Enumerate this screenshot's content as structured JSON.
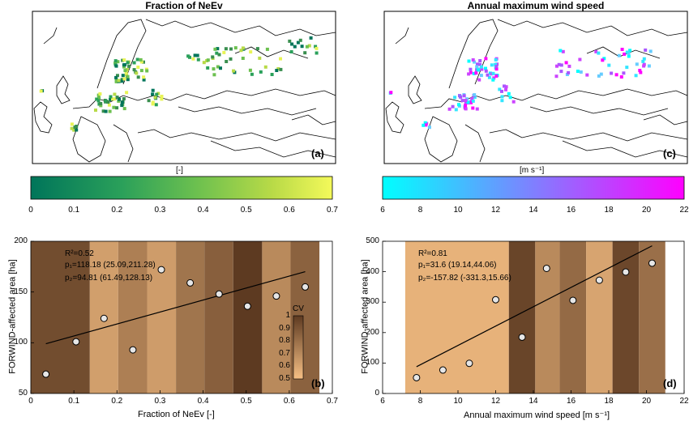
{
  "panels": {
    "a": {
      "title": "Fraction of NeEv",
      "letter": "(a)",
      "unit": "[-]",
      "colorbar": {
        "ticks": [
          "0",
          "0.1",
          "0.2",
          "0.3",
          "0.4",
          "0.5",
          "0.6",
          "0.7"
        ],
        "colors": [
          "#00755a",
          "#2aa05a",
          "#6cc04f",
          "#b8da47",
          "#f4f95a"
        ]
      }
    },
    "c": {
      "title": "Annual maximum wind speed",
      "letter": "(c)",
      "unit": "[m s⁻¹]",
      "colorbar": {
        "ticks": [
          "6",
          "8",
          "10",
          "12",
          "14",
          "16",
          "18",
          "20",
          "22"
        ],
        "colors": [
          "#00ffff",
          "#ff00ff"
        ]
      }
    },
    "b": {
      "letter": "(b)",
      "stat_r2": "R²=0.52",
      "stat_p1": "p₁=118.18 (25.09,211.28)",
      "stat_p2": "p₂=94.81 (61.49,128.13)",
      "inset_title": "CV",
      "inset_ticks": [
        "0.5",
        "0.6",
        "0.7",
        "0.8",
        "0.9",
        "1"
      ]
    },
    "d": {
      "letter": "(d)",
      "stat_r2": "R²=0.81",
      "stat_p1": "p₁=31.6 (19.14,44.06)",
      "stat_p2": "p₂=-157.82 (-331.3,15.66)"
    }
  },
  "chart_data": [
    {
      "type": "scatter",
      "xlabel": "Fraction of NeEv [-]",
      "ylabel": "FORWIND-affected area [ha]",
      "xlim": [
        0,
        0.7
      ],
      "ylim": [
        50,
        200
      ],
      "xticks": [
        "0",
        "0.1",
        "0.2",
        "0.3",
        "0.4",
        "0.5",
        "0.6",
        "0.7"
      ],
      "yticks": [
        "50",
        "100",
        "150",
        "200"
      ],
      "x": [
        0.035,
        0.105,
        0.17,
        0.237,
        0.303,
        0.37,
        0.437,
        0.503,
        0.57,
        0.637
      ],
      "y": [
        69,
        101,
        124,
        93,
        172,
        159,
        148,
        136,
        146,
        155
      ],
      "fit_line": {
        "x": [
          0.035,
          0.637
        ],
        "y": [
          99,
          170
        ]
      },
      "bands": [
        {
          "x0": 0.0,
          "x1": 0.137,
          "cv": 0.93
        },
        {
          "x0": 0.137,
          "x1": 0.203,
          "cv": 0.62
        },
        {
          "x0": 0.203,
          "x1": 0.27,
          "cv": 0.74
        },
        {
          "x0": 0.27,
          "x1": 0.337,
          "cv": 0.63
        },
        {
          "x0": 0.337,
          "x1": 0.403,
          "cv": 0.78
        },
        {
          "x0": 0.403,
          "x1": 0.47,
          "cv": 0.86
        },
        {
          "x0": 0.47,
          "x1": 0.537,
          "cv": 1.0
        },
        {
          "x0": 0.537,
          "x1": 0.603,
          "cv": 0.7
        },
        {
          "x0": 0.603,
          "x1": 0.67,
          "cv": 0.85
        }
      ]
    },
    {
      "type": "scatter",
      "xlabel": "Annual maximum wind speed [m s⁻¹]",
      "ylabel": "FORWIND-affected area [ha]",
      "xlim": [
        6,
        22
      ],
      "ylim": [
        0,
        500
      ],
      "xticks": [
        "6",
        "8",
        "10",
        "12",
        "14",
        "16",
        "18",
        "20",
        "22"
      ],
      "yticks": [
        "0",
        "100",
        "200",
        "300",
        "400",
        "500"
      ],
      "x": [
        7.8,
        9.2,
        10.6,
        12.0,
        13.4,
        14.7,
        16.1,
        17.5,
        18.9,
        20.3
      ],
      "y": [
        52,
        77,
        99,
        308,
        185,
        411,
        306,
        372,
        399,
        428
      ],
      "fit_line": {
        "x": [
          7.8,
          20.3
        ],
        "y": [
          88,
          485
        ]
      },
      "bands": [
        {
          "x0": 7.2,
          "x1": 12.7,
          "cv": 0.55
        },
        {
          "x0": 12.7,
          "x1": 14.1,
          "cv": 0.96
        },
        {
          "x0": 14.1,
          "x1": 15.4,
          "cv": 0.7
        },
        {
          "x0": 15.4,
          "x1": 16.8,
          "cv": 0.82
        },
        {
          "x0": 16.8,
          "x1": 18.2,
          "cv": 0.6
        },
        {
          "x0": 18.2,
          "x1": 19.6,
          "cv": 0.95
        },
        {
          "x0": 19.6,
          "x1": 21.0,
          "cv": 0.8
        }
      ]
    }
  ]
}
